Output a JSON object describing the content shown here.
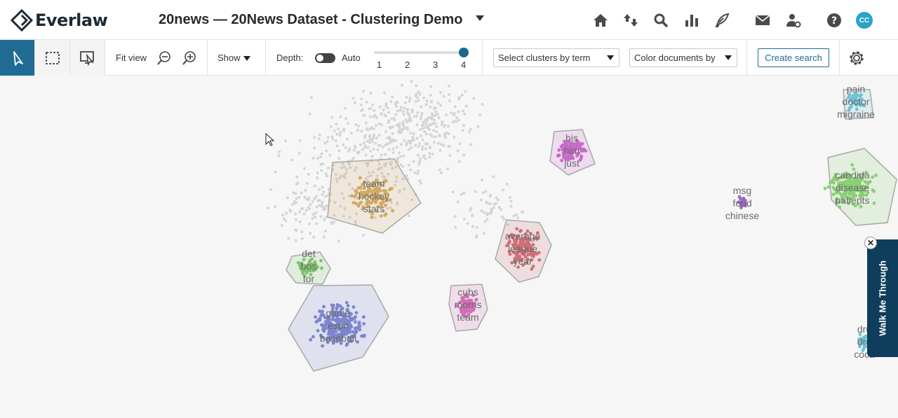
{
  "header": {
    "logo_text": "Everlaw",
    "project_title": "20news — 20News Dataset - Clustering Demo",
    "icons": [
      "home-icon",
      "sort-arrows-icon",
      "search-icon",
      "bar-chart-icon",
      "feather-pen-icon",
      "mail-icon",
      "user-settings-icon",
      "help-icon"
    ],
    "avatar_initials": "CC",
    "avatar_color": "#2aa3c9"
  },
  "toolbar": {
    "fit_view": "Fit view",
    "show": "Show",
    "depth": "Depth:",
    "auto": "Auto",
    "depth_ticks": [
      "1",
      "2",
      "3",
      "4"
    ],
    "depth_value": 4,
    "select_clusters": "Select clusters by term",
    "color_documents": "Color documents by",
    "create_search": "Create search"
  },
  "clusters": [
    {
      "terms": [
        "team",
        "hockey",
        "stars"
      ],
      "color": "#d4a962"
    },
    {
      "terms": [
        "his",
        "him",
        "just"
      ],
      "color": "#c86ac9"
    },
    {
      "terms": [
        "average",
        "league",
        "year"
      ],
      "color": "#cf6f78"
    },
    {
      "terms": [
        "det",
        "bos",
        "tor"
      ],
      "color": "#7dc46b"
    },
    {
      "terms": [
        "game",
        "espn",
        "baseball"
      ],
      "color": "#7b86cf"
    },
    {
      "terms": [
        "cubs",
        "morris",
        "team"
      ],
      "color": "#d26fb6"
    },
    {
      "terms": [
        "msg",
        "food",
        "chinese"
      ],
      "color": "#9a68c4"
    },
    {
      "terms": [
        "candida",
        "disease",
        "patients"
      ],
      "color": "#8bcf74"
    },
    {
      "terms": [
        "pain",
        "doctor",
        "migraine"
      ],
      "color": "#6ec2d4"
    },
    {
      "terms": [
        "dru",
        "dru",
        "coca"
      ],
      "color": "#6ec2d4"
    }
  ],
  "walk_me_through": "Walk Me Through"
}
